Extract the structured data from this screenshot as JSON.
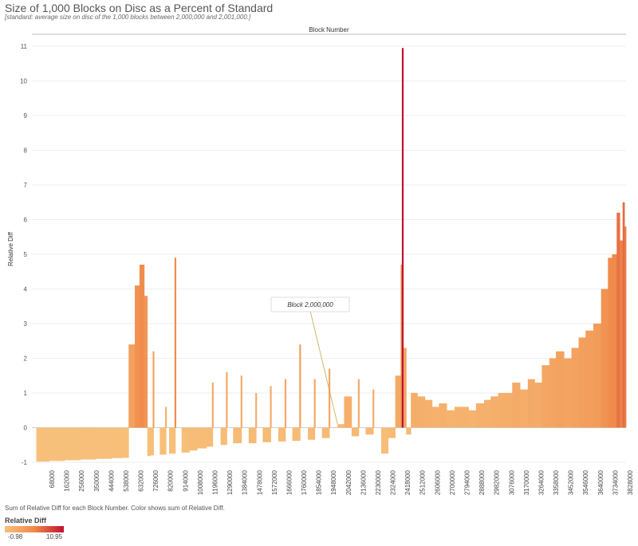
{
  "header": {
    "title": "Size of 1,000 Blocks on Disc as a Percent of Standard",
    "subtitle": "[standard: average size on disc of the 1,000 blocks between 2,000,000 and 2,001,000.]"
  },
  "footer": {
    "note": "Sum of Relative Diff for each Block Number.  Color shows sum of Relative Diff."
  },
  "legend": {
    "title": "Relative Diff",
    "min_label": "-0.98",
    "max_label": "10.95",
    "colors": [
      "#f7c07a",
      "#f08a4a",
      "#c01230"
    ]
  },
  "chart_data": {
    "type": "bar",
    "title": "Size of 1,000 Blocks on Disc as a Percent of Standard",
    "xlabel": "Block Number",
    "ylabel": "Relative Diff",
    "ylim": [
      -1,
      11.3
    ],
    "yticks": [
      -1,
      0,
      1,
      2,
      3,
      4,
      5,
      6,
      7,
      8,
      9,
      10,
      11
    ],
    "x_tick_labels": [
      "68000",
      "162000",
      "256000",
      "350000",
      "444000",
      "538000",
      "632000",
      "726000",
      "820000",
      "914000",
      "1008000",
      "1196000",
      "1290000",
      "1384000",
      "1478000",
      "1572000",
      "1666000",
      "1760000",
      "1854000",
      "1948000",
      "2042000",
      "2136000",
      "2230000",
      "2324000",
      "2418000",
      "2512000",
      "2606000",
      "2700000",
      "2794000",
      "2888000",
      "2982000",
      "3076000",
      "3170000",
      "3264000",
      "3358000",
      "3452000",
      "3546000",
      "3640000",
      "3734000",
      "3828000"
    ],
    "color_range": [
      -0.98,
      10.95
    ],
    "grid": true,
    "annotation": {
      "text": "Block 2,000,000",
      "x": 2000000,
      "y": 0.1
    },
    "series": [
      {
        "x": [
          68000,
          150000,
          250000,
          350000,
          450000,
          550000,
          620000,
          660000,
          700000,
          730000,
          760000,
          780000,
          800000,
          820000,
          860000,
          900000,
          920000,
          960000,
          1000000,
          1050000,
          1100000,
          1160000,
          1200000,
          1250000,
          1290000,
          1330000,
          1384000,
          1430000,
          1478000,
          1520000,
          1572000,
          1620000,
          1666000,
          1710000,
          1760000,
          1810000,
          1854000,
          1900000,
          1948000,
          2000000,
          2042000,
          2090000,
          2136000,
          2180000,
          2230000,
          2280000,
          2324000,
          2370000,
          2405000,
          2418000,
          2423000,
          2440000,
          2470000,
          2512000,
          2560000,
          2606000,
          2650000,
          2700000,
          2750000,
          2794000,
          2840000,
          2888000,
          2940000,
          2982000,
          3030000,
          3076000,
          3120000,
          3170000,
          3220000,
          3264000,
          3310000,
          3358000,
          3400000,
          3452000,
          3500000,
          3546000,
          3590000,
          3640000,
          3690000,
          3734000,
          3760000,
          3790000,
          3810000,
          3828000,
          3840000
        ],
        "values": [
          -0.98,
          -0.96,
          -0.94,
          -0.92,
          -0.9,
          -0.88,
          -0.87,
          2.4,
          4.1,
          4.7,
          3.8,
          -0.82,
          -0.8,
          2.2,
          -0.78,
          0.6,
          -0.75,
          4.9,
          -0.72,
          -0.66,
          -0.6,
          -0.55,
          1.3,
          -0.5,
          1.6,
          -0.45,
          1.5,
          -0.45,
          1.0,
          -0.42,
          1.2,
          -0.4,
          1.4,
          -0.38,
          2.4,
          -0.35,
          1.4,
          -0.3,
          1.7,
          0.1,
          0.9,
          -0.25,
          1.4,
          -0.2,
          1.1,
          -0.75,
          -0.3,
          1.5,
          4.7,
          10.95,
          2.3,
          -0.2,
          1.0,
          0.9,
          0.8,
          0.6,
          0.7,
          0.5,
          0.6,
          0.6,
          0.5,
          0.7,
          0.8,
          0.9,
          1.0,
          1.0,
          1.3,
          1.1,
          1.4,
          1.3,
          1.8,
          2.0,
          2.2,
          2.0,
          2.3,
          2.6,
          2.8,
          3.0,
          4.0,
          4.9,
          5.0,
          6.2,
          5.4,
          6.5,
          5.8
        ]
      }
    ]
  }
}
